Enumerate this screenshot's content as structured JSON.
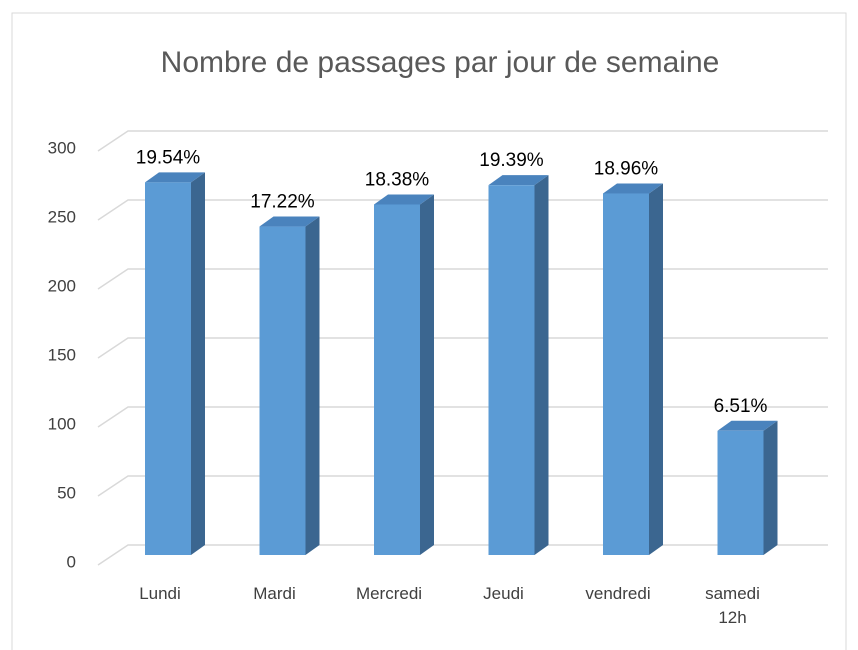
{
  "chart_data": {
    "type": "bar3d",
    "title": "Nombre de passages par jour de semaine",
    "categories": [
      "Lundi",
      "Mardi",
      "Mercredi",
      "Jeudi",
      "vendredi",
      "samedi 12h"
    ],
    "values": [
      270,
      238,
      254,
      268,
      262,
      90
    ],
    "percent_labels": [
      "19.54%",
      "17.22%",
      "18.38%",
      "19.39%",
      "18.96%",
      "6.51%"
    ],
    "color": "#5b9bd5",
    "ylim": [
      0,
      300
    ],
    "yticks": [
      0,
      50,
      100,
      150,
      200,
      250,
      300
    ],
    "grid": true
  }
}
